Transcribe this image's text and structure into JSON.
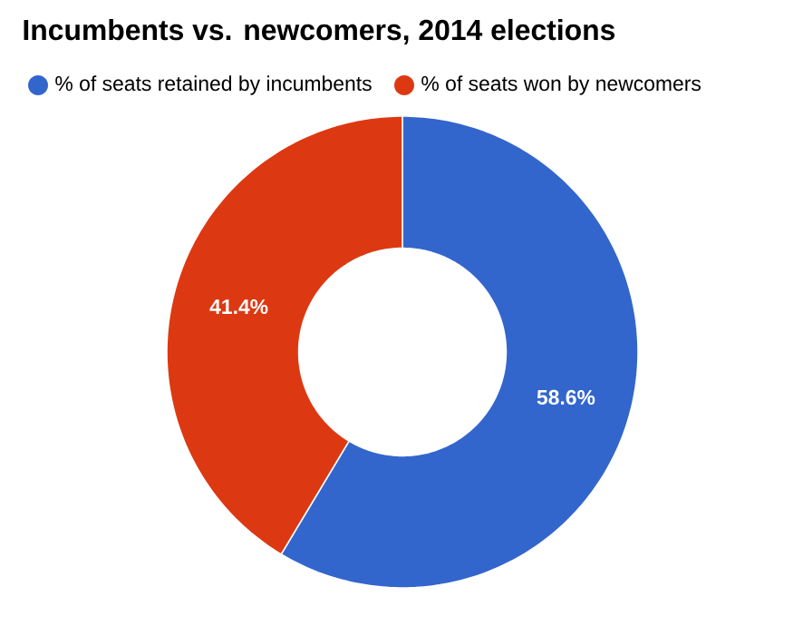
{
  "chart_data": {
    "type": "donut",
    "title": "Incumbents vs. newcomers, 2014 elections",
    "categories": [
      "% of seats retained by incumbents",
      "% of seats won by newcomers"
    ],
    "values": [
      58.6,
      41.4
    ],
    "value_labels": [
      "58.6%",
      "41.4%"
    ],
    "colors": [
      "#3366cc",
      "#dc3912"
    ],
    "legend": "top"
  }
}
